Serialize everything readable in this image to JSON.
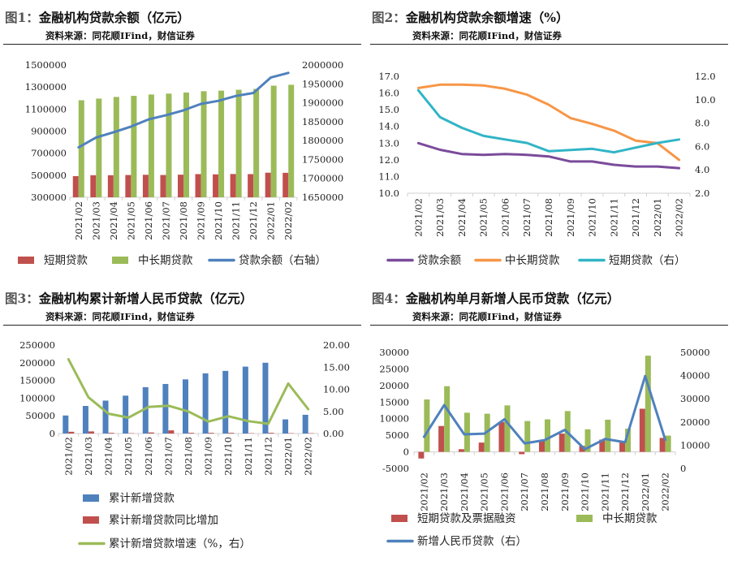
{
  "panels": [
    {
      "title_num": "图1：",
      "title": "金融机构贷款余额（亿元）",
      "source": "资料来源：同花顺IFind，财信证券",
      "chart_data": {
        "type": "bar",
        "categories": [
          "2021/02",
          "2021/03",
          "2021/04",
          "2021/05",
          "2021/06",
          "2021/07",
          "2021/08",
          "2021/09",
          "2021/10",
          "2021/11",
          "2021/12",
          "2022/01",
          "2022/02"
        ],
        "ylim_left": [
          300000,
          1500000
        ],
        "yticks_left": [
          300000,
          500000,
          700000,
          900000,
          1100000,
          1300000,
          1500000
        ],
        "ylim_right": [
          1650000,
          2000000
        ],
        "yticks_right": [
          1650000,
          1700000,
          1750000,
          1800000,
          1850000,
          1900000,
          1950000,
          2000000
        ],
        "series": [
          {
            "name": "短期贷款",
            "type": "bar",
            "axis": "left",
            "color": "#c0504d",
            "values": [
              492000,
              500000,
              500000,
              502000,
              504000,
              502000,
              505000,
              510000,
              508000,
              511000,
              510000,
              523000,
              522000
            ]
          },
          {
            "name": "中长期贷款",
            "type": "bar",
            "axis": "left",
            "color": "#9bbb59",
            "values": [
              1180000,
              1195000,
              1210000,
              1220000,
              1232000,
              1240000,
              1250000,
              1262000,
              1267000,
              1275000,
              1283000,
              1312000,
              1320000
            ]
          },
          {
            "name": "贷款余额（右轴）",
            "type": "line",
            "axis": "right",
            "color": "#4f81bd",
            "values": [
              1782000,
              1808000,
              1822000,
              1837000,
              1856000,
              1867000,
              1880000,
              1897000,
              1905000,
              1918000,
              1926000,
              1967000,
              1979000
            ]
          }
        ]
      }
    },
    {
      "title_num": "图2：",
      "title": "金融机构贷款余额增速（%）",
      "source": "资料来源：同花顺IFind，财信证券",
      "chart_data": {
        "type": "line",
        "categories": [
          "2021/02",
          "2021/03",
          "2021/04",
          "2021/05",
          "2021/06",
          "2021/07",
          "2021/08",
          "2021/09",
          "2021/10",
          "2021/11",
          "2021/12",
          "2022/01",
          "2022/02"
        ],
        "ylim_left": [
          10.0,
          17.0
        ],
        "yticks_left": [
          "10.0",
          "11.0",
          "12.0",
          "13.0",
          "14.0",
          "15.0",
          "16.0",
          "17.0"
        ],
        "ylim_right": [
          2.0,
          12.0
        ],
        "yticks_right": [
          "2.0",
          "4.0",
          "6.0",
          "8.0",
          "10.0",
          "12.0"
        ],
        "series": [
          {
            "name": "贷款余额",
            "axis": "left",
            "color": "#7a4b9a",
            "values": [
              13.0,
              12.6,
              12.35,
              12.3,
              12.35,
              12.3,
              12.2,
              11.9,
              11.9,
              11.7,
              11.6,
              11.6,
              11.5
            ]
          },
          {
            "name": "中长期贷款",
            "axis": "left",
            "color": "#f79646",
            "values": [
              16.3,
              16.5,
              16.5,
              16.45,
              16.25,
              15.9,
              15.3,
              14.5,
              14.15,
              13.75,
              13.15,
              13.0,
              12.0
            ]
          },
          {
            "name": "短期贷款（右）",
            "axis": "right",
            "color": "#31b5c6",
            "values": [
              10.8,
              8.5,
              7.6,
              6.9,
              6.6,
              6.3,
              5.6,
              5.7,
              5.8,
              5.5,
              5.9,
              6.3,
              6.6
            ]
          }
        ]
      }
    },
    {
      "title_num": "图3：",
      "title": "金融机构累计新增人民币贷款（亿元）",
      "source": "资料来源：同花顺IFind，财信证券",
      "chart_data": {
        "type": "bar",
        "categories": [
          "2021/02",
          "2021/03",
          "2021/04",
          "2021/05",
          "2021/06",
          "2021/07",
          "2021/08",
          "2021/09",
          "2021/10",
          "2021/11",
          "2021/12",
          "2022/01",
          "2022/02"
        ],
        "ylim_left": [
          0,
          250000
        ],
        "yticks_left": [
          0,
          50000,
          100000,
          150000,
          200000,
          250000
        ],
        "ylim_right": [
          0,
          20
        ],
        "yticks_right": [
          "0.00",
          "5.00",
          "10.00",
          "15.00",
          "20.00"
        ],
        "series": [
          {
            "name": "累计新增贷款",
            "type": "bar",
            "axis": "left",
            "color": "#4f81bd",
            "values": [
              51000,
              78000,
              93000,
              107000,
              131000,
              140000,
              153000,
              170000,
              177000,
              189000,
              200000,
              40000,
              53000
            ]
          },
          {
            "name": "累计新增贷款同比增加",
            "type": "bar",
            "axis": "left",
            "color": "#c0504d",
            "values": [
              5000,
              6000,
              2000,
              1000,
              3000,
              9000,
              2000,
              2000,
              2000,
              1000,
              2000,
              1000,
              1000
            ]
          },
          {
            "name": "累计新增贷款增速（%，右）",
            "type": "line",
            "axis": "right",
            "color": "#9bbb59",
            "values": [
              16.8,
              8.2,
              4.5,
              3.6,
              6.0,
              6.3,
              5.0,
              2.7,
              3.9,
              2.8,
              2.2,
              11.3,
              5.5
            ]
          }
        ]
      }
    },
    {
      "title_num": "图4：",
      "title": "金融机构单月新增人民币贷款（亿元）",
      "source": "资料来源：同花顺IFind，财信证券",
      "chart_data": {
        "type": "bar",
        "categories": [
          "2021/02",
          "2021/03",
          "2021/04",
          "2021/05",
          "2021/06",
          "2021/07",
          "2021/08",
          "2021/09",
          "2021/10",
          "2021/11",
          "2021/12",
          "2022/01",
          "2022/02"
        ],
        "ylim_left": [
          -5000,
          30000
        ],
        "yticks_left": [
          -5000,
          0,
          5000,
          10000,
          15000,
          20000,
          25000,
          30000
        ],
        "ylim_right": [
          0,
          50000
        ],
        "yticks_right": [
          0,
          10000,
          20000,
          30000,
          40000,
          50000
        ],
        "series": [
          {
            "name": "短期贷款及票据融资",
            "type": "bar",
            "axis": "left",
            "color": "#c0504d",
            "values": [
              -2000,
              7800,
              800,
              2800,
              9000,
              -700,
              3600,
              5500,
              1800,
              3700,
              2900,
              13000,
              4200
            ]
          },
          {
            "name": "中长期贷款",
            "type": "bar",
            "axis": "left",
            "color": "#9bbb59",
            "values": [
              15800,
              19800,
              11800,
              11500,
              14000,
              9300,
              9800,
              12300,
              6800,
              9700,
              7000,
              29000,
              4900
            ]
          },
          {
            "name": "新增人民币贷款（右）",
            "type": "line",
            "axis": "right",
            "color": "#4f81bd",
            "values": [
              13600,
              27300,
              14700,
              15000,
              21200,
              10800,
              12200,
              16600,
              8300,
              12700,
              11300,
              39800,
              12300
            ]
          }
        ]
      }
    }
  ]
}
